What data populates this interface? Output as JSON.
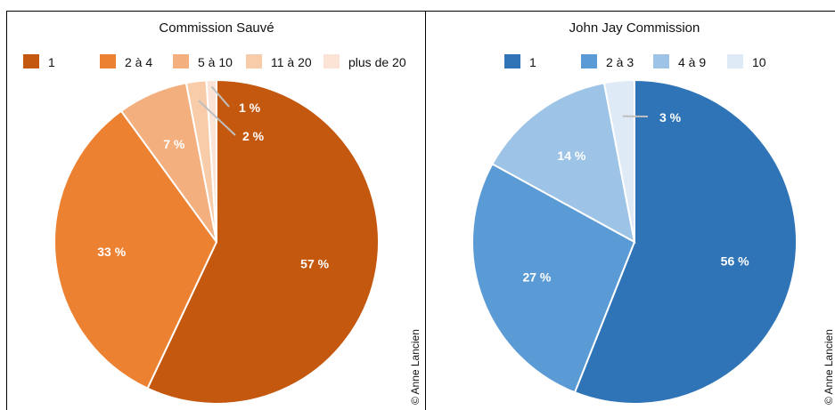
{
  "chart_data": [
    {
      "type": "pie",
      "title": "Commission Sauvé",
      "categories": [
        "1",
        "2 à 4",
        "5 à 10",
        "11 à 20",
        "plus de 20"
      ],
      "values": [
        57,
        33,
        7,
        2,
        1
      ],
      "value_labels": [
        "57 %",
        "33 %",
        "7 %",
        "2 %",
        "1 %"
      ],
      "colors": [
        "#c4580f",
        "#ed8132",
        "#f3b07e",
        "#f8cba9",
        "#fbe4d5"
      ],
      "legend_position": "top",
      "start_angle": "12 o'clock",
      "direction": "clockwise"
    },
    {
      "type": "pie",
      "title": "John Jay Commission",
      "categories": [
        "1",
        "2 à 3",
        "4 à 9",
        "10"
      ],
      "values": [
        56,
        27,
        14,
        3
      ],
      "value_labels": [
        "56 %",
        "27 %",
        "14 %",
        "3 %"
      ],
      "colors": [
        "#2e74b7",
        "#5b9bd5",
        "#9dc3e6",
        "#deebf7"
      ],
      "legend_position": "top",
      "start_angle": "12 o'clock",
      "direction": "clockwise"
    }
  ],
  "credits": [
    "© Anne Lancien",
    "© Anne Lancien"
  ]
}
